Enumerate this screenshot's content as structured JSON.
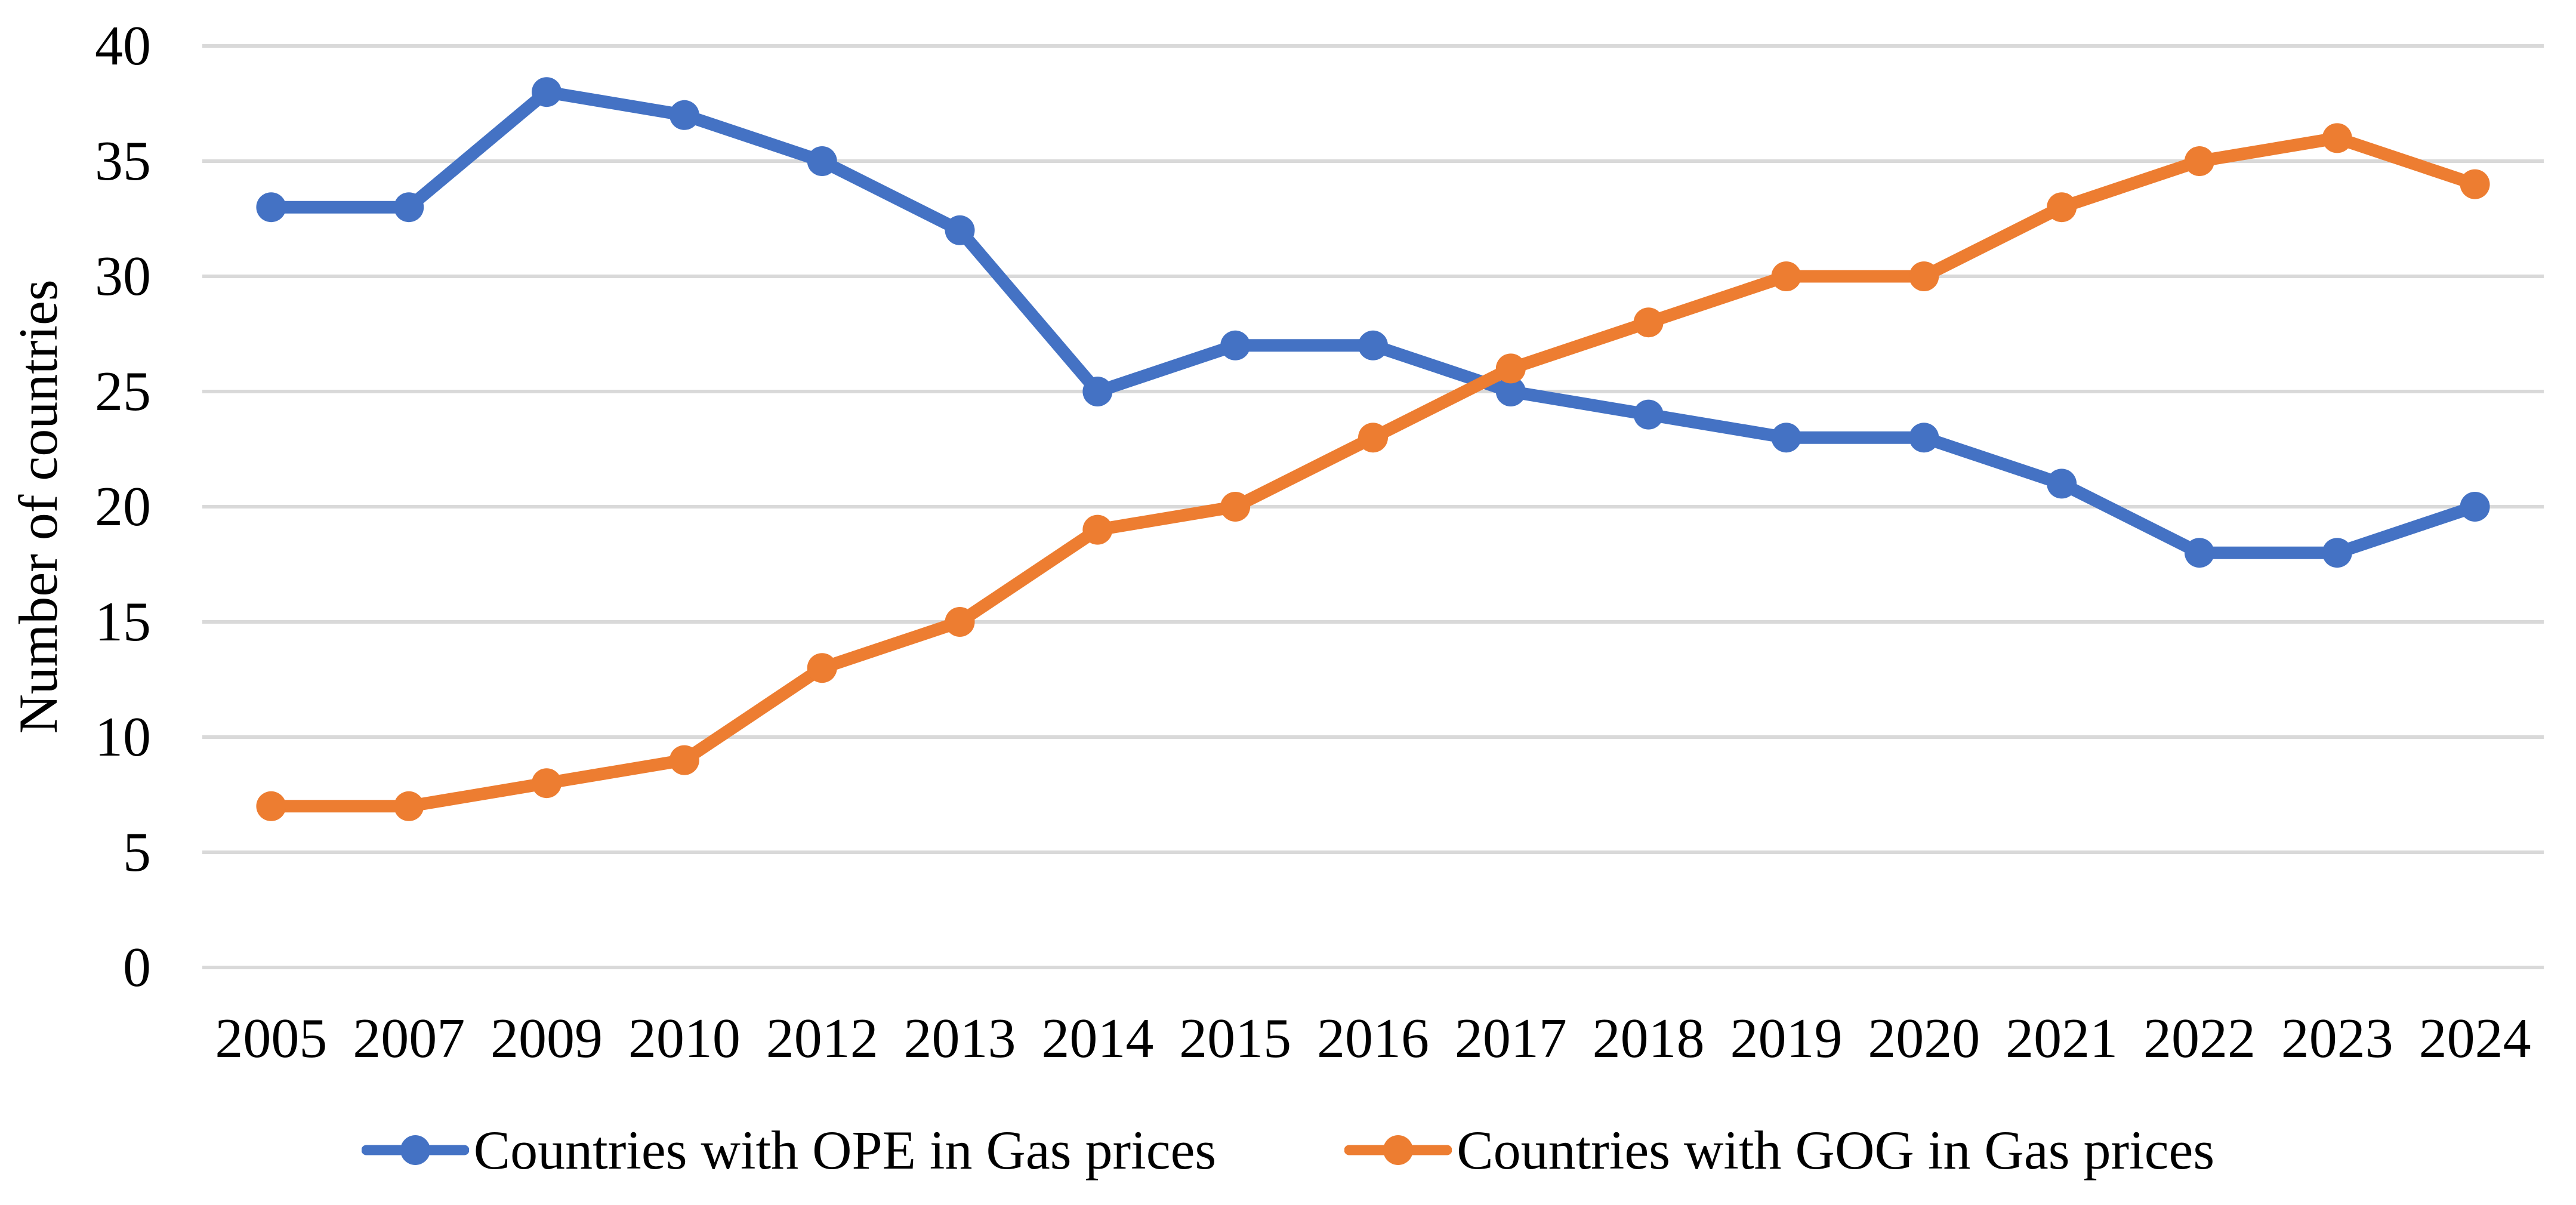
{
  "chart_data": {
    "type": "line",
    "title": "",
    "xlabel": "",
    "ylabel": "Number of countries",
    "categories": [
      "2005",
      "2007",
      "2009",
      "2010",
      "2012",
      "2013",
      "2014",
      "2015",
      "2016",
      "2017",
      "2018",
      "2019",
      "2020",
      "2021",
      "2022",
      "2023",
      "2024"
    ],
    "series": [
      {
        "id": "ope",
        "name": "Countries with OPE in Gas prices",
        "color": "#4472C4",
        "values": [
          33,
          33,
          38,
          37,
          35,
          32,
          25,
          27,
          27,
          25,
          24,
          23,
          23,
          21,
          18,
          18,
          20
        ]
      },
      {
        "id": "gog",
        "name": "Countries with GOG in Gas prices",
        "color": "#ED7D31",
        "values": [
          7,
          7,
          8,
          9,
          13,
          15,
          19,
          20,
          23,
          26,
          28,
          30,
          30,
          33,
          35,
          36,
          34
        ]
      }
    ],
    "y_axis": {
      "min": 0,
      "max": 40,
      "step": 5,
      "tick_labels": [
        "0",
        "5",
        "10",
        "15",
        "20",
        "25",
        "30",
        "35",
        "40"
      ]
    },
    "grid": {
      "horizontal": true,
      "color": "#D9D9D9"
    },
    "text_color": "#000000",
    "legend_position": "bottom",
    "marker": "circle"
  }
}
